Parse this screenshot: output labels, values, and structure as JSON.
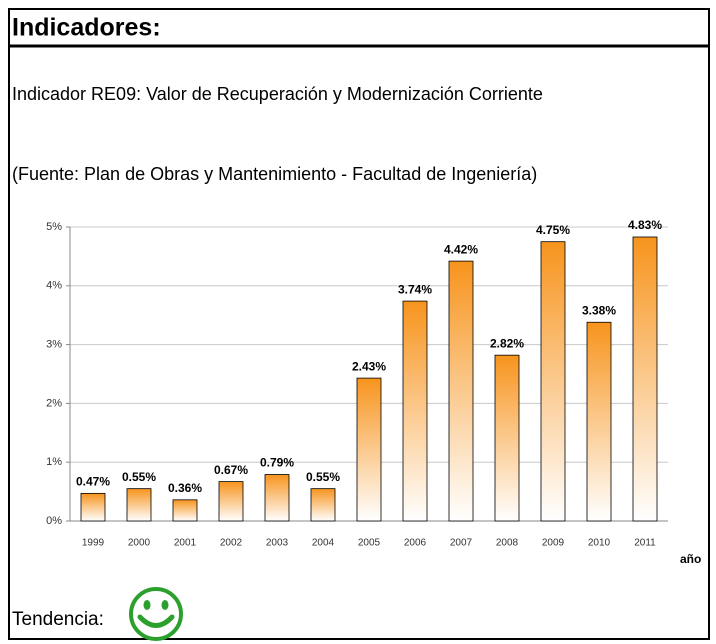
{
  "header": {
    "title": "Indicadores:"
  },
  "indicator": "Indicador RE09: Valor de Recuperación y Modernización Corriente",
  "source": "(Fuente: Plan de Obras y Mantenimiento - Facultad de Ingeniería)",
  "footer": {
    "label": "Tendencia:"
  },
  "chart_data": {
    "type": "bar",
    "categories": [
      "1999",
      "2000",
      "2001",
      "2002",
      "2003",
      "2004",
      "2005",
      "2006",
      "2007",
      "2008",
      "2009",
      "2010",
      "2011"
    ],
    "values": [
      0.47,
      0.55,
      0.36,
      0.67,
      0.79,
      0.55,
      2.43,
      3.74,
      4.42,
      2.82,
      4.75,
      3.38,
      4.83
    ],
    "value_labels": [
      "0.47%",
      "0.55%",
      "0.36%",
      "0.67%",
      "0.79%",
      "0.55%",
      "2.43%",
      "3.74%",
      "4.42%",
      "2.82%",
      "4.75%",
      "3.38%",
      "4.83%"
    ],
    "x_label": "año",
    "ylim": [
      0,
      5
    ],
    "yticks": [
      {
        "value": 0,
        "label": "0%"
      },
      {
        "value": 1,
        "label": "1%"
      },
      {
        "value": 2,
        "label": "2%"
      },
      {
        "value": 3,
        "label": "3%"
      },
      {
        "value": 4,
        "label": "4%"
      },
      {
        "value": 5,
        "label": "5%"
      }
    ],
    "grid": true
  }
}
